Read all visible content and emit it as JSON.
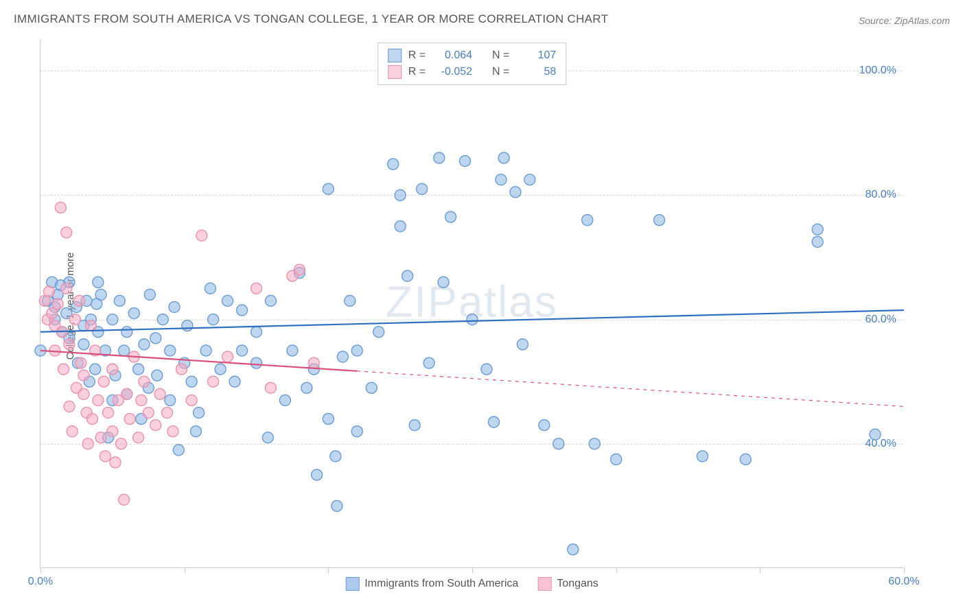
{
  "title": "IMMIGRANTS FROM SOUTH AMERICA VS TONGAN COLLEGE, 1 YEAR OR MORE CORRELATION CHART",
  "source": "Source: ZipAtlas.com",
  "ylabel": "College, 1 year or more",
  "watermark": {
    "bold": "ZIP",
    "rest": "atlas"
  },
  "chart": {
    "type": "scatter",
    "background_color": "#ffffff",
    "grid_color": "#d8d8d8",
    "axis_color": "#cccccc",
    "label_color": "#4a7ebb",
    "xlim": [
      0,
      60
    ],
    "ylim": [
      20,
      105
    ],
    "ytick_step": 20,
    "yticks": [
      40,
      60,
      80,
      100
    ],
    "ytick_labels": [
      "40.0%",
      "60.0%",
      "80.0%",
      "100.0%"
    ],
    "xticks": [
      0,
      10,
      20,
      30,
      40,
      50,
      60
    ],
    "xtick_labels_shown": {
      "0": "0.0%",
      "60": "60.0%"
    },
    "marker_radius": 8,
    "marker_stroke_width": 1.4,
    "line_width": 2.2,
    "series": [
      {
        "name": "Immigrants from South America",
        "key": "south_america",
        "fill": "rgba(138,180,230,0.55)",
        "stroke": "#6b9bd1",
        "line_stroke": "#2f6fc0",
        "r_value": "0.064",
        "n_value": "107",
        "trend": {
          "x1": 0,
          "y1": 58,
          "x2": 60,
          "y2": 61.5
        },
        "dash_after_x": null,
        "points": [
          [
            0,
            55
          ],
          [
            0.5,
            63
          ],
          [
            0.8,
            66
          ],
          [
            1,
            62
          ],
          [
            1,
            60
          ],
          [
            1.2,
            64
          ],
          [
            1.4,
            65.5
          ],
          [
            1.5,
            58
          ],
          [
            1.8,
            61
          ],
          [
            2,
            66
          ],
          [
            2,
            57
          ],
          [
            2.5,
            62
          ],
          [
            2.6,
            53
          ],
          [
            3,
            59
          ],
          [
            3,
            56
          ],
          [
            3.2,
            63
          ],
          [
            3.4,
            50
          ],
          [
            3.5,
            60
          ],
          [
            3.8,
            52
          ],
          [
            3.9,
            62.5
          ],
          [
            4,
            66
          ],
          [
            4,
            58
          ],
          [
            4.2,
            64
          ],
          [
            4.5,
            55
          ],
          [
            4.7,
            41
          ],
          [
            5,
            47
          ],
          [
            5,
            60
          ],
          [
            5.2,
            51
          ],
          [
            5.5,
            63
          ],
          [
            5.8,
            55
          ],
          [
            6,
            48
          ],
          [
            6,
            58
          ],
          [
            6.5,
            61
          ],
          [
            6.8,
            52
          ],
          [
            7,
            44
          ],
          [
            7.2,
            56
          ],
          [
            7.5,
            49
          ],
          [
            7.6,
            64
          ],
          [
            8,
            57
          ],
          [
            8.1,
            51
          ],
          [
            8.5,
            60
          ],
          [
            9,
            55
          ],
          [
            9,
            47
          ],
          [
            9.3,
            62
          ],
          [
            9.6,
            39
          ],
          [
            10,
            53
          ],
          [
            10.2,
            59
          ],
          [
            10.5,
            50
          ],
          [
            10.8,
            42
          ],
          [
            11,
            45
          ],
          [
            11.5,
            55
          ],
          [
            11.8,
            65
          ],
          [
            12,
            60
          ],
          [
            12.5,
            52
          ],
          [
            13,
            63
          ],
          [
            13.5,
            50
          ],
          [
            14,
            55
          ],
          [
            14,
            61.5
          ],
          [
            15,
            58
          ],
          [
            15,
            53
          ],
          [
            15.8,
            41
          ],
          [
            16,
            63
          ],
          [
            17,
            47
          ],
          [
            17.5,
            55
          ],
          [
            18,
            67.5
          ],
          [
            18.5,
            49
          ],
          [
            19,
            52
          ],
          [
            19.2,
            35
          ],
          [
            20,
            44
          ],
          [
            20,
            81
          ],
          [
            20.5,
            38
          ],
          [
            20.6,
            30
          ],
          [
            21,
            54
          ],
          [
            21.5,
            63
          ],
          [
            22,
            55
          ],
          [
            22,
            42
          ],
          [
            23,
            49
          ],
          [
            23.5,
            58
          ],
          [
            24.5,
            85
          ],
          [
            25,
            75
          ],
          [
            25,
            80
          ],
          [
            25.5,
            67
          ],
          [
            26,
            43
          ],
          [
            26.5,
            81
          ],
          [
            27,
            53
          ],
          [
            27.7,
            86
          ],
          [
            28,
            66
          ],
          [
            28.5,
            76.5
          ],
          [
            29.5,
            85.5
          ],
          [
            30,
            60
          ],
          [
            31,
            52
          ],
          [
            31.5,
            43.5
          ],
          [
            32,
            82.5
          ],
          [
            32.2,
            86
          ],
          [
            33,
            80.5
          ],
          [
            33.5,
            56
          ],
          [
            34,
            82.5
          ],
          [
            35,
            43
          ],
          [
            36,
            40
          ],
          [
            37,
            23
          ],
          [
            38,
            76
          ],
          [
            38.5,
            40
          ],
          [
            40,
            37.5
          ],
          [
            43,
            76
          ],
          [
            46,
            38
          ],
          [
            49,
            37.5
          ],
          [
            54,
            74.5
          ],
          [
            54,
            72.5
          ],
          [
            58,
            41.5
          ]
        ]
      },
      {
        "name": "Tongans",
        "key": "tongans",
        "fill": "rgba(248,170,195,0.55)",
        "stroke": "#e793ae",
        "line_stroke": "#d94f7a",
        "r_value": "-0.052",
        "n_value": "58",
        "trend": {
          "x1": 0,
          "y1": 55,
          "x2": 60,
          "y2": 46
        },
        "dash_after_x": 22,
        "points": [
          [
            0.3,
            63
          ],
          [
            0.5,
            60
          ],
          [
            0.6,
            64.5
          ],
          [
            0.8,
            61
          ],
          [
            1,
            59
          ],
          [
            1,
            55
          ],
          [
            1.2,
            62.5
          ],
          [
            1.4,
            78
          ],
          [
            1.5,
            58
          ],
          [
            1.6,
            52
          ],
          [
            1.8,
            65
          ],
          [
            1.8,
            74
          ],
          [
            2,
            56
          ],
          [
            2,
            46
          ],
          [
            2.2,
            42
          ],
          [
            2.4,
            60
          ],
          [
            2.5,
            49
          ],
          [
            2.7,
            63
          ],
          [
            2.8,
            53
          ],
          [
            3,
            51
          ],
          [
            3,
            48
          ],
          [
            3.2,
            45
          ],
          [
            3.3,
            40
          ],
          [
            3.5,
            59
          ],
          [
            3.6,
            44
          ],
          [
            3.8,
            55
          ],
          [
            4,
            47
          ],
          [
            4.2,
            41
          ],
          [
            4.4,
            50
          ],
          [
            4.5,
            38
          ],
          [
            4.7,
            45
          ],
          [
            5,
            52
          ],
          [
            5,
            42
          ],
          [
            5.2,
            37
          ],
          [
            5.4,
            47
          ],
          [
            5.6,
            40
          ],
          [
            5.8,
            31
          ],
          [
            6,
            48
          ],
          [
            6.2,
            44
          ],
          [
            6.5,
            54
          ],
          [
            6.8,
            41
          ],
          [
            7,
            47
          ],
          [
            7.2,
            50
          ],
          [
            7.5,
            45
          ],
          [
            8,
            43
          ],
          [
            8.3,
            48
          ],
          [
            8.8,
            45
          ],
          [
            9.2,
            42
          ],
          [
            9.8,
            52
          ],
          [
            10.5,
            47
          ],
          [
            11.2,
            73.5
          ],
          [
            12,
            50
          ],
          [
            13,
            54
          ],
          [
            15,
            65
          ],
          [
            16,
            49
          ],
          [
            17.5,
            67
          ],
          [
            18,
            68
          ],
          [
            19,
            53
          ]
        ]
      }
    ],
    "legend_bottom": [
      {
        "label": "Immigrants from South America",
        "fill": "rgba(138,180,230,0.7)",
        "stroke": "#6b9bd1"
      },
      {
        "label": "Tongans",
        "fill": "rgba(248,170,195,0.7)",
        "stroke": "#e793ae"
      }
    ]
  }
}
